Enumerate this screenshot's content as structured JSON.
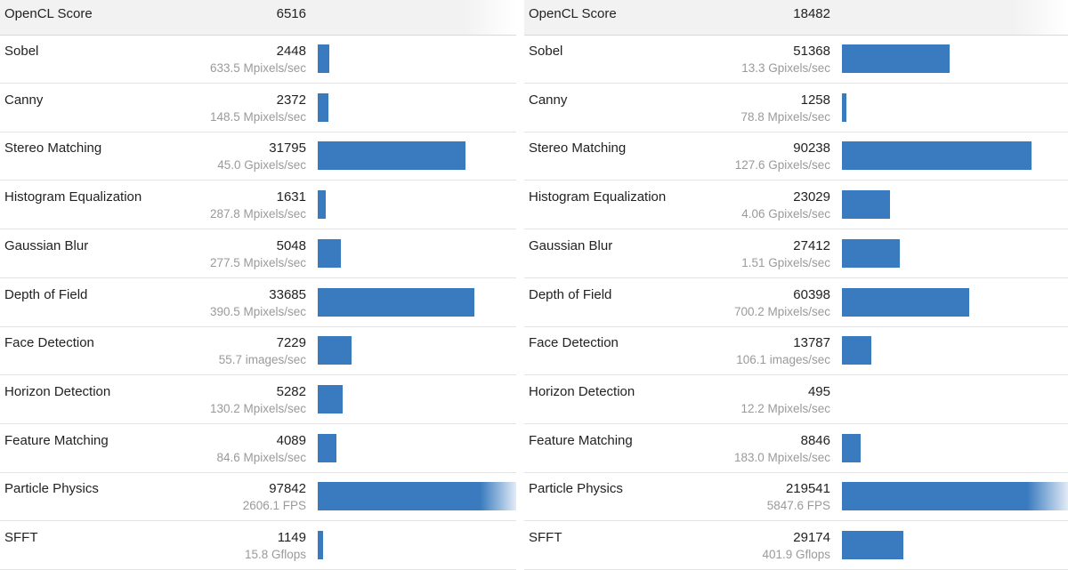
{
  "colors": {
    "bar": "#3a7bbf",
    "header_bg": "#f2f2f2",
    "unit_text": "#9a9a9a"
  },
  "chart_data": [
    {
      "type": "bar",
      "orientation": "horizontal",
      "header": {
        "label": "OpenCL Score",
        "score": "6516"
      },
      "categories": [
        "Sobel",
        "Canny",
        "Stereo Matching",
        "Histogram Equalization",
        "Gaussian Blur",
        "Depth of Field",
        "Face Detection",
        "Horizon Detection",
        "Feature Matching",
        "Particle Physics",
        "SFFT"
      ],
      "values": [
        2448,
        2372,
        31795,
        1631,
        5048,
        33685,
        7229,
        5282,
        4089,
        97842,
        1149
      ],
      "units": [
        "633.5 Mpixels/sec",
        "148.5 Mpixels/sec",
        "45.0 Gpixels/sec",
        "287.8 Mpixels/sec",
        "277.5 Mpixels/sec",
        "390.5 Mpixels/sec",
        "55.7 images/sec",
        "130.2 Mpixels/sec",
        "84.6 Mpixels/sec",
        "2606.1 FPS",
        "15.8 Gflops"
      ],
      "bar_max": 33685
    },
    {
      "type": "bar",
      "orientation": "horizontal",
      "header": {
        "label": "OpenCL Score",
        "score": "18482"
      },
      "categories": [
        "Sobel",
        "Canny",
        "Stereo Matching",
        "Histogram Equalization",
        "Gaussian Blur",
        "Depth of Field",
        "Face Detection",
        "Horizon Detection",
        "Feature Matching",
        "Particle Physics",
        "SFFT"
      ],
      "values": [
        51368,
        1258,
        90238,
        23029,
        27412,
        60398,
        13787,
        495,
        8846,
        219541,
        29174
      ],
      "units": [
        "13.3 Gpixels/sec",
        "78.8 Mpixels/sec",
        "127.6 Gpixels/sec",
        "4.06 Gpixels/sec",
        "1.51 Gpixels/sec",
        "700.2 Mpixels/sec",
        "106.1 images/sec",
        "12.2 Mpixels/sec",
        "183.0 Mpixels/sec",
        "5847.6 FPS",
        "401.9 Gflops"
      ],
      "bar_max": 90238
    }
  ]
}
